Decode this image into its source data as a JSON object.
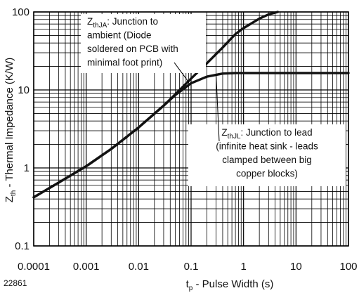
{
  "figure_number": "22861",
  "chart_data": {
    "type": "line",
    "xscale": "log",
    "yscale": "log",
    "xlim": [
      0.0001,
      100
    ],
    "ylim": [
      0.1,
      100
    ],
    "grid": true,
    "xlabel": {
      "main": "t",
      "sub": "p",
      "rest": " - Pulse Width (s)"
    },
    "ylabel": {
      "main": "Z",
      "sub": "th",
      "rest": " - Thermal Impedance (K/W)"
    },
    "x_ticks": [
      {
        "value": 0.0001,
        "label": "0.0001"
      },
      {
        "value": 0.001,
        "label": "0.001"
      },
      {
        "value": 0.01,
        "label": "0.01"
      },
      {
        "value": 0.1,
        "label": "0.1"
      },
      {
        "value": 1,
        "label": "1"
      },
      {
        "value": 10,
        "label": "10"
      },
      {
        "value": 100,
        "label": "100"
      }
    ],
    "y_ticks": [
      {
        "value": 0.1,
        "label": "0.1"
      },
      {
        "value": 1,
        "label": "1"
      },
      {
        "value": 10,
        "label": "10"
      },
      {
        "value": 100,
        "label": "100"
      }
    ],
    "series": [
      {
        "id": "zthja",
        "x": [
          0.0001,
          0.0003,
          0.001,
          0.003,
          0.01,
          0.03,
          0.05,
          0.1,
          0.2,
          0.4,
          0.7,
          1,
          2,
          3,
          4.5
        ],
        "y": [
          0.42,
          0.65,
          1.05,
          1.75,
          3.3,
          6.3,
          8.8,
          14,
          22,
          35,
          52,
          62,
          82,
          93,
          100
        ]
      },
      {
        "id": "zthjl",
        "x": [
          0.0001,
          0.0003,
          0.001,
          0.003,
          0.01,
          0.03,
          0.05,
          0.1,
          0.2,
          0.4,
          0.7,
          1,
          2,
          10,
          100
        ],
        "y": [
          0.42,
          0.65,
          1.05,
          1.75,
          3.3,
          6.3,
          8.6,
          12.2,
          14.8,
          16.2,
          16.5,
          16.5,
          16.5,
          16.5,
          16.5
        ]
      }
    ],
    "annotations": [
      {
        "id": "ja",
        "lines": [
          {
            "main": "Z",
            "sub": "thJA",
            "rest": ": Junction to"
          },
          {
            "text": "ambient (Diode"
          },
          {
            "text": "soldered on PCB with"
          },
          {
            "text": "minimal foot print)"
          }
        ],
        "pointer": {
          "x": 0.09,
          "y": 12.6
        }
      },
      {
        "id": "jl",
        "lines": [
          {
            "main": "Z",
            "sub": "thJL",
            "rest": ": Junction to lead"
          },
          {
            "text": "(infinite heat sink - leads"
          },
          {
            "text": "clamped between big"
          },
          {
            "text": "copper blocks)"
          }
        ],
        "pointer": {
          "x": 0.3,
          "y": 15.5
        }
      }
    ]
  }
}
